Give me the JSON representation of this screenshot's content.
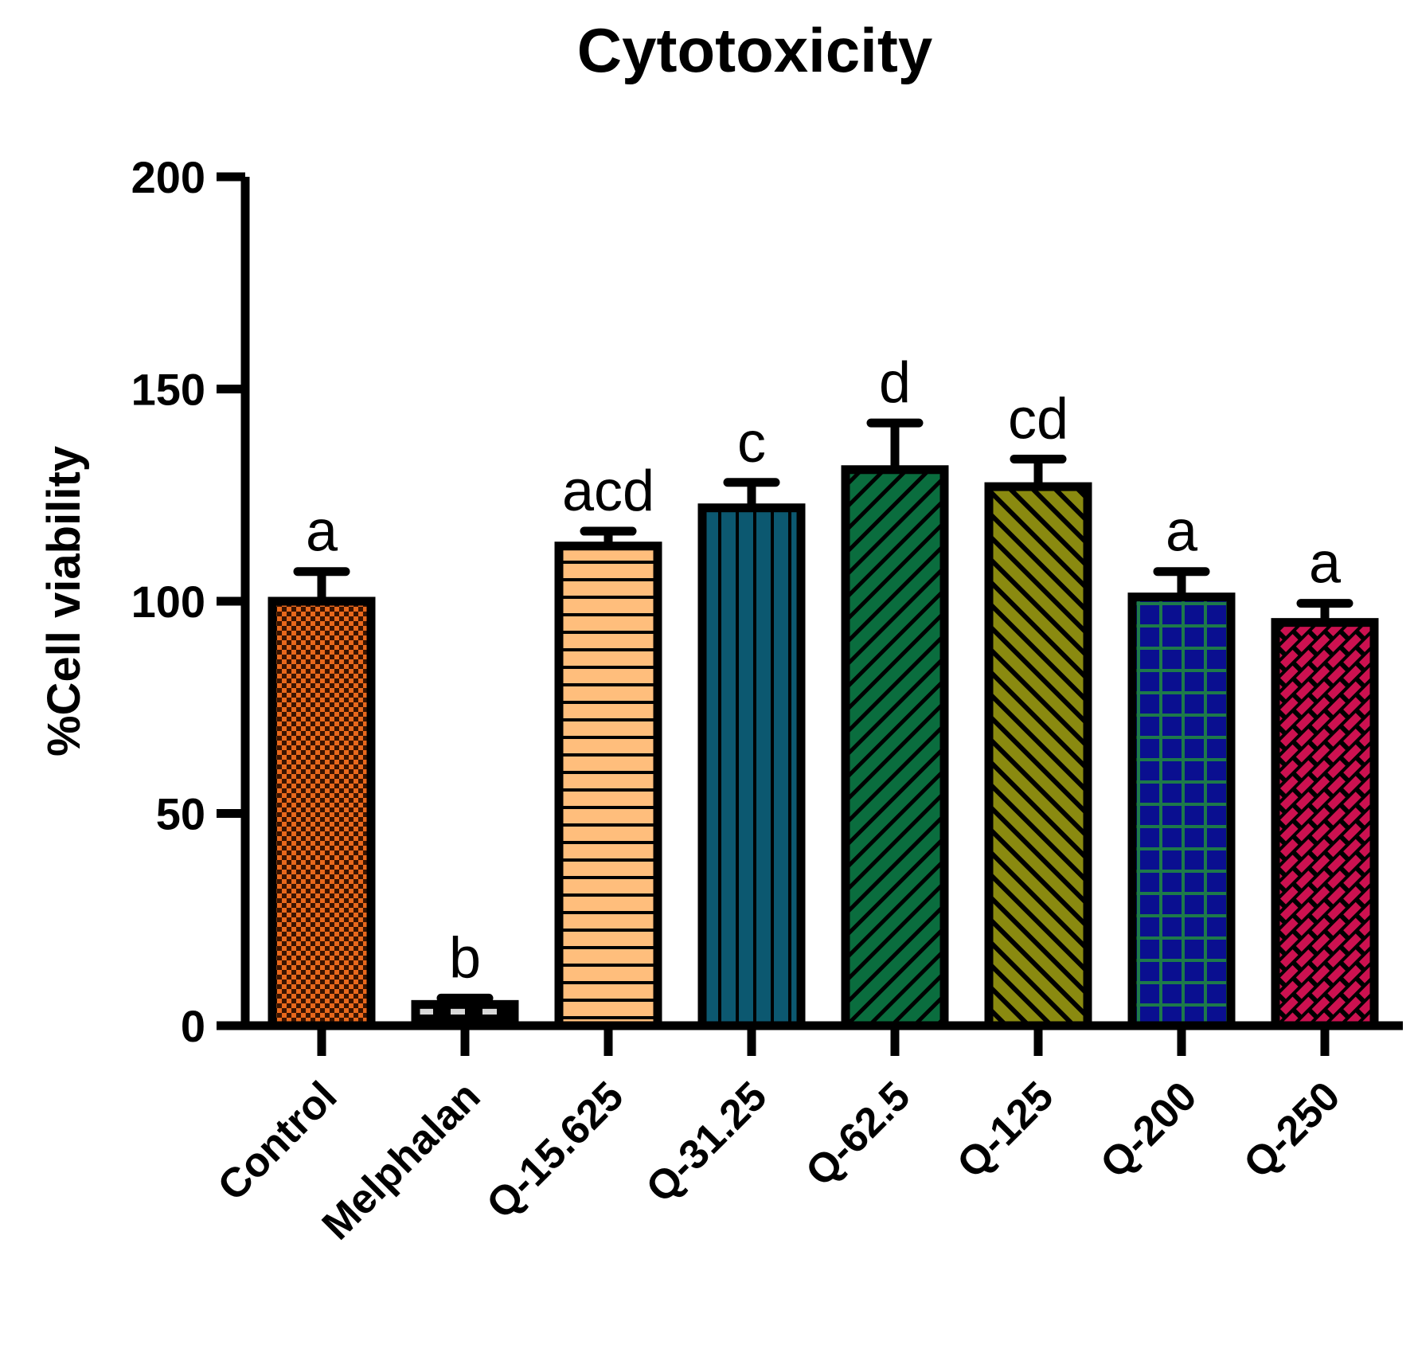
{
  "chart_data": {
    "type": "bar",
    "title": "Cytotoxicity",
    "xlabel": "",
    "ylabel": "%Cell viability",
    "ylim": [
      0,
      200
    ],
    "yticks": [
      0,
      50,
      100,
      150,
      200
    ],
    "grid": false,
    "categories": [
      "Control",
      "Melphalan",
      "Q-15.625",
      "Q-31.25",
      "Q-62.5",
      "Q-125",
      "Q-200",
      "Q-250"
    ],
    "values": [
      100,
      5,
      113,
      122,
      131,
      127,
      101,
      95
    ],
    "errors": [
      7,
      1.5,
      3.5,
      6,
      11,
      6.5,
      6,
      4.5
    ],
    "significance_labels": [
      "a",
      "b",
      "acd",
      "c",
      "d",
      "cd",
      "a",
      "a"
    ],
    "bar_fill_colors": [
      "#E8681C",
      "#D0D0D0",
      "#FFBE7C",
      "#0C5870",
      "#0A6D3E",
      "#8A8A10",
      "#0A0F90",
      "#CC1150"
    ],
    "bar_patterns": [
      "checker",
      "dashes",
      "horizontal",
      "vertical",
      "diagonal",
      "diagonal",
      "grid",
      "brick"
    ]
  }
}
